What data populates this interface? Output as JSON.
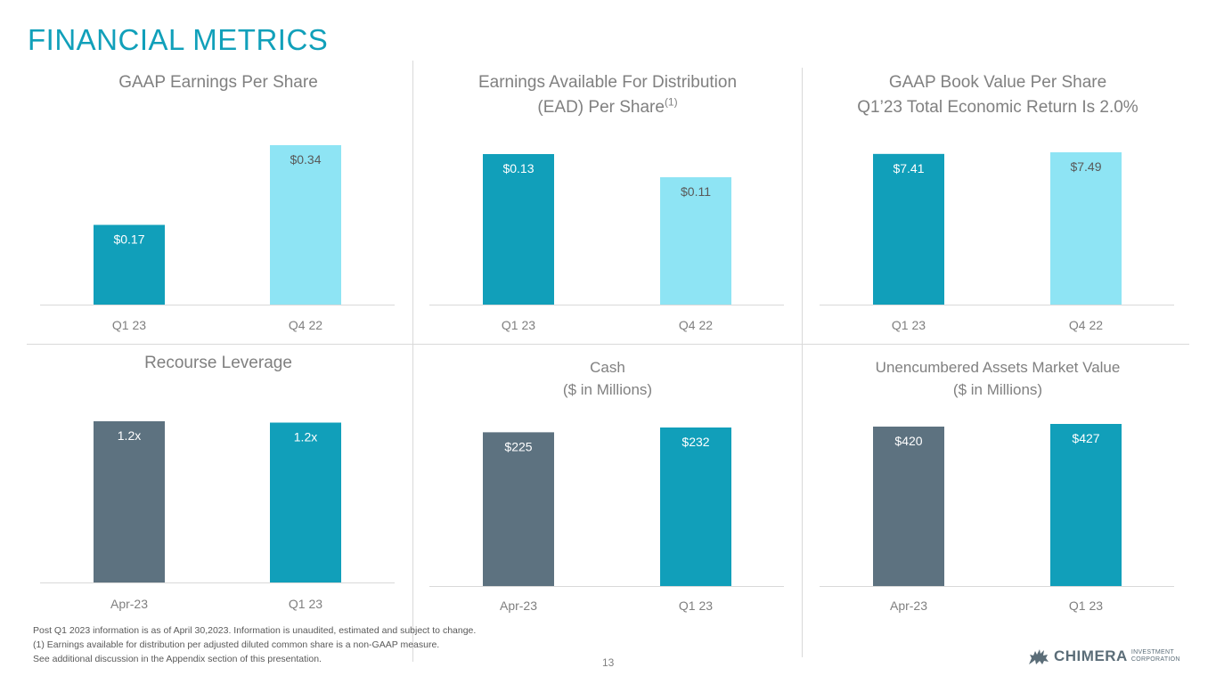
{
  "page": {
    "title": "FINANCIAL METRICS",
    "page_number": "13"
  },
  "colors": {
    "title": "#11a0ba",
    "teal": "#119fba",
    "light_blue": "#8ee4f4",
    "slate": "#5d7280",
    "axis": "#d9d9d9",
    "category_text": "#7f7f7f"
  },
  "chart_data": [
    {
      "type": "bar",
      "title": "GAAP Earnings Per Share",
      "categories": [
        "Q1 23",
        "Q4 22"
      ],
      "values": [
        0.17,
        0.34
      ],
      "labels": [
        "$0.17",
        "$0.34"
      ],
      "bar_colors": [
        "#119fba",
        "#8ee4f4"
      ],
      "label_colors": [
        "#ffffff",
        "#595959"
      ],
      "ylim": [
        0,
        0.34
      ]
    },
    {
      "type": "bar",
      "title": "Earnings Available For Distribution",
      "title_line2": "(EAD) Per Share",
      "title_superscript": "(1)",
      "categories": [
        "Q1 23",
        "Q4 22"
      ],
      "values": [
        0.13,
        0.11
      ],
      "labels": [
        "$0.13",
        "$0.11"
      ],
      "bar_colors": [
        "#119fba",
        "#8ee4f4"
      ],
      "label_colors": [
        "#ffffff",
        "#595959"
      ],
      "ylim": [
        0,
        0.13
      ]
    },
    {
      "type": "bar",
      "title": "GAAP Book Value Per Share",
      "title_line2": "Q1’23 Total Economic Return Is 2.0%",
      "categories": [
        "Q1 23",
        "Q4 22"
      ],
      "values": [
        7.41,
        7.49
      ],
      "labels": [
        "$7.41",
        "$7.49"
      ],
      "bar_colors": [
        "#119fba",
        "#8ee4f4"
      ],
      "label_colors": [
        "#ffffff",
        "#595959"
      ],
      "ylim": [
        0,
        7.49
      ]
    },
    {
      "type": "bar",
      "title": "Recourse Leverage",
      "categories": [
        "Apr-23",
        "Q1 23"
      ],
      "values": [
        1.2,
        1.19
      ],
      "labels": [
        "1.2x",
        "1.2x"
      ],
      "bar_colors": [
        "#5d7280",
        "#119fba"
      ],
      "label_colors": [
        "#ffffff",
        "#ffffff"
      ],
      "ylim": [
        0,
        1.2
      ]
    },
    {
      "type": "bar",
      "title": "Cash",
      "title_line2": "($ in Millions)",
      "categories": [
        "Apr-23",
        "Q1 23"
      ],
      "values": [
        225,
        232
      ],
      "labels": [
        "$225",
        "$232"
      ],
      "bar_colors": [
        "#5d7280",
        "#119fba"
      ],
      "label_colors": [
        "#ffffff",
        "#ffffff"
      ],
      "ylim": [
        0,
        232
      ]
    },
    {
      "type": "bar",
      "title": "Unencumbered Assets Market Value",
      "title_line2": "($ in Millions)",
      "categories": [
        "Apr-23",
        "Q1 23"
      ],
      "values": [
        420,
        427
      ],
      "labels": [
        "$420",
        "$427"
      ],
      "bar_colors": [
        "#5d7280",
        "#119fba"
      ],
      "label_colors": [
        "#ffffff",
        "#ffffff"
      ],
      "ylim": [
        0,
        427
      ]
    }
  ],
  "footnotes": [
    "Post Q1 2023 information is as of April 30,2023. Information is unaudited, estimated and subject to change.",
    "(1) Earnings available for distribution per adjusted diluted common share is a non-GAAP measure.",
    "See additional discussion in the Appendix section of this presentation."
  ],
  "logo": {
    "word": "CHIMERA",
    "sub1": "INVESTMENT",
    "sub2": "CORPORATION"
  }
}
